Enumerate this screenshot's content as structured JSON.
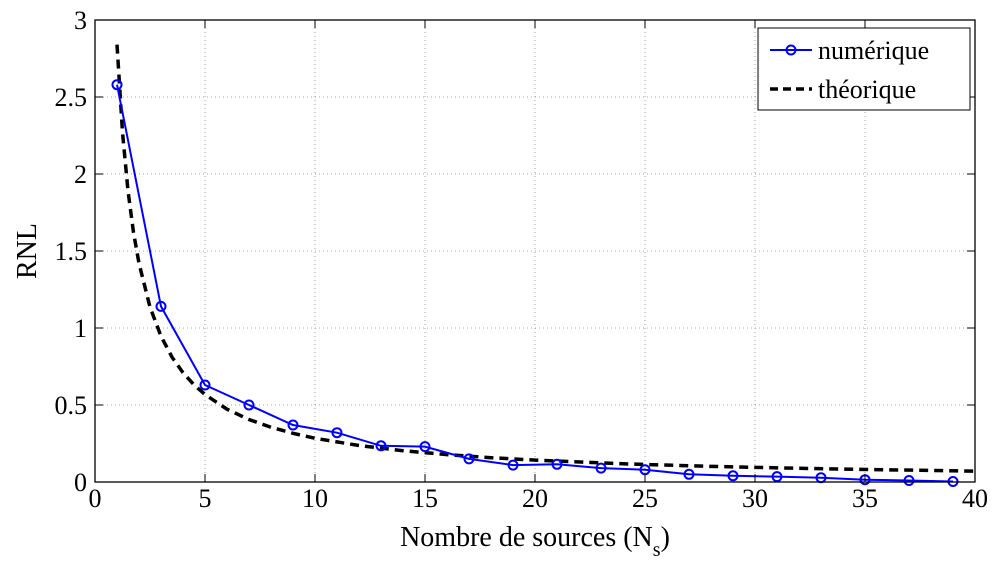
{
  "chart_data": {
    "type": "line",
    "xlabel_main": "Nombre de sources (N",
    "xlabel_sub": "s",
    "xlabel_close": ")",
    "ylabel": "RNL",
    "xlim": [
      0,
      40
    ],
    "ylim": [
      0,
      3
    ],
    "xticks": [
      "0",
      "5",
      "10",
      "15",
      "20",
      "25",
      "30",
      "35",
      "40"
    ],
    "yticks": [
      "0",
      "0.5",
      "1",
      "1.5",
      "2",
      "2.5",
      "3"
    ],
    "grid": true,
    "legend_position": "top-right",
    "series": [
      {
        "name": "numérique",
        "style": "solid-circle-markers",
        "color": "#0000ff",
        "x": [
          1,
          3,
          5,
          7,
          9,
          11,
          13,
          15,
          17,
          19,
          21,
          23,
          25,
          27,
          29,
          31,
          33,
          35,
          37,
          39
        ],
        "y": [
          2.58,
          1.14,
          0.63,
          0.5,
          0.37,
          0.32,
          0.235,
          0.23,
          0.15,
          0.11,
          0.115,
          0.09,
          0.08,
          0.05,
          0.04,
          0.035,
          0.028,
          0.015,
          0.01,
          0.003
        ]
      },
      {
        "name": "théorique",
        "style": "dashed",
        "color": "#000000",
        "x": [
          1,
          1.25,
          1.5,
          1.75,
          2,
          2.5,
          3,
          3.5,
          4,
          4.5,
          5,
          6,
          7,
          8,
          9,
          10,
          12,
          14,
          16,
          18,
          20,
          24,
          28,
          32,
          36,
          40
        ],
        "y": [
          2.84,
          2.27,
          1.89,
          1.62,
          1.42,
          1.136,
          0.947,
          0.811,
          0.71,
          0.631,
          0.568,
          0.473,
          0.406,
          0.355,
          0.316,
          0.284,
          0.237,
          0.203,
          0.178,
          0.158,
          0.142,
          0.118,
          0.101,
          0.089,
          0.079,
          0.071
        ]
      }
    ]
  }
}
